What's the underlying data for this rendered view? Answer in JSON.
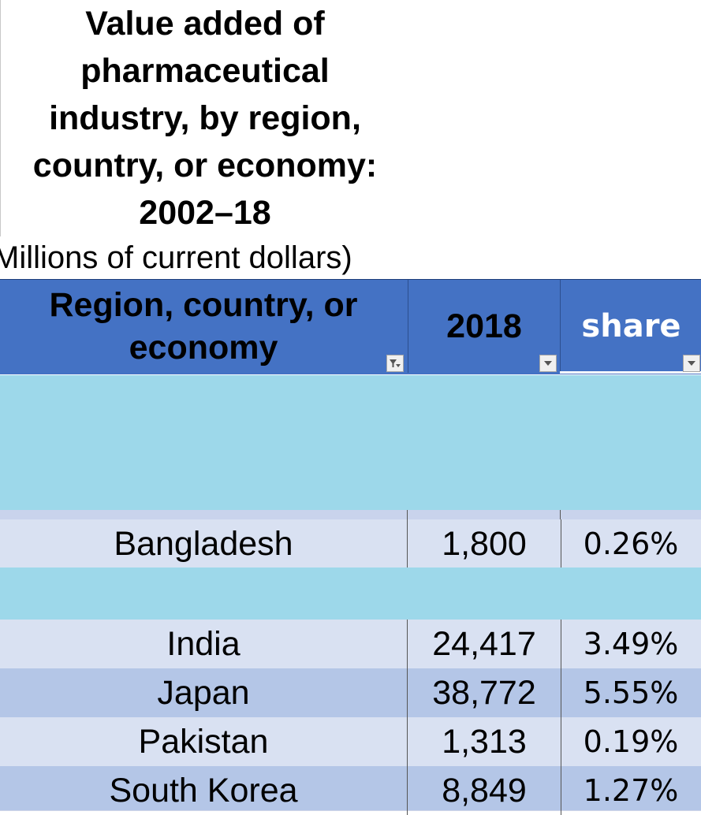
{
  "title_lines": [
    "Value added of",
    "pharmaceutical",
    "industry, by region,",
    "country, or economy:",
    "2002–18"
  ],
  "subtitle": "Millions of current dollars)",
  "table": {
    "headers": {
      "region": "Region, country, or economy",
      "year": "2018",
      "share": "share"
    },
    "rows": [
      {
        "name": "Bangladesh",
        "value": "1,800",
        "share": "0.26%"
      },
      {
        "name": "India",
        "value": "24,417",
        "share": "3.49%"
      },
      {
        "name": "Japan",
        "value": "38,772",
        "share": "5.55%"
      },
      {
        "name": "Pakistan",
        "value": "1,313",
        "share": "0.19%"
      },
      {
        "name": "South Korea",
        "value": "8,849",
        "share": "1.27%"
      }
    ]
  },
  "colors": {
    "header": "#4472c4",
    "row_light": "#d9e1f2",
    "row_dark": "#b4c6e7",
    "redaction": "#9dd8ea"
  }
}
